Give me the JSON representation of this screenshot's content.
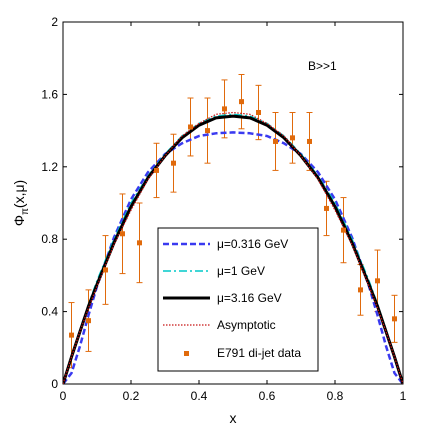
{
  "chart_data": {
    "type": "line",
    "xlabel": "x",
    "ylabel": "Φπ(x,μ)",
    "ylabel_parts": {
      "main": "Φ",
      "sub": "π",
      "args": "(x,μ)"
    },
    "annotation": "B>>1",
    "xlim": [
      0,
      1
    ],
    "ylim": [
      0,
      2
    ],
    "xticks": [
      "0",
      "0.2",
      "0.4",
      "0.6",
      "0.8",
      "1"
    ],
    "xtick_values": [
      0,
      0.2,
      0.4,
      0.6,
      0.8,
      1
    ],
    "yticks": [
      "0",
      "0.4",
      "0.8",
      "1.2",
      "1.6",
      "2"
    ],
    "ytick_values": [
      0,
      0.4,
      0.8,
      1.2,
      1.6,
      2
    ],
    "grid": false,
    "legend_position": "bottom-center",
    "series": [
      {
        "name": "μ=0.316 GeV",
        "style": "dashed",
        "color": "#3a3af0",
        "x": [
          0,
          0.025,
          0.05,
          0.075,
          0.1,
          0.15,
          0.2,
          0.25,
          0.3,
          0.35,
          0.4,
          0.45,
          0.5,
          0.55,
          0.6,
          0.65,
          0.7,
          0.75,
          0.8,
          0.85,
          0.9,
          0.925,
          0.95,
          0.975,
          1
        ],
        "y": [
          0,
          0.06,
          0.21,
          0.38,
          0.54,
          0.81,
          1.02,
          1.17,
          1.27,
          1.33,
          1.37,
          1.385,
          1.39,
          1.385,
          1.37,
          1.33,
          1.27,
          1.17,
          1.02,
          0.81,
          0.54,
          0.38,
          0.21,
          0.06,
          0
        ]
      },
      {
        "name": "μ=1 GeV",
        "style": "dash-dot",
        "color": "#00c8c8",
        "x": [
          0,
          0.025,
          0.05,
          0.075,
          0.1,
          0.15,
          0.2,
          0.25,
          0.3,
          0.35,
          0.4,
          0.45,
          0.5,
          0.55,
          0.6,
          0.65,
          0.7,
          0.75,
          0.8,
          0.85,
          0.9,
          0.925,
          0.95,
          0.975,
          1
        ],
        "y": [
          0,
          0.15,
          0.3,
          0.44,
          0.57,
          0.8,
          1.0,
          1.15,
          1.27,
          1.37,
          1.44,
          1.48,
          1.49,
          1.48,
          1.44,
          1.37,
          1.27,
          1.15,
          1.0,
          0.8,
          0.57,
          0.44,
          0.3,
          0.15,
          0
        ]
      },
      {
        "name": "μ=3.16 GeV",
        "style": "solid",
        "color": "#000000",
        "x": [
          0,
          0.025,
          0.05,
          0.075,
          0.1,
          0.15,
          0.2,
          0.25,
          0.3,
          0.35,
          0.4,
          0.45,
          0.5,
          0.55,
          0.6,
          0.65,
          0.7,
          0.75,
          0.8,
          0.85,
          0.9,
          0.925,
          0.95,
          0.975,
          1
        ],
        "y": [
          0,
          0.15,
          0.29,
          0.43,
          0.55,
          0.78,
          0.98,
          1.14,
          1.26,
          1.36,
          1.43,
          1.47,
          1.48,
          1.47,
          1.43,
          1.36,
          1.26,
          1.14,
          0.98,
          0.78,
          0.55,
          0.43,
          0.29,
          0.15,
          0
        ]
      },
      {
        "name": "Asymptotic",
        "style": "dotted",
        "color": "#c81414",
        "x": [
          0,
          0.025,
          0.05,
          0.075,
          0.1,
          0.15,
          0.2,
          0.25,
          0.3,
          0.35,
          0.4,
          0.45,
          0.5,
          0.55,
          0.6,
          0.65,
          0.7,
          0.75,
          0.8,
          0.85,
          0.9,
          0.925,
          0.95,
          0.975,
          1
        ],
        "y": [
          0,
          0.15,
          0.29,
          0.42,
          0.54,
          0.77,
          0.96,
          1.13,
          1.26,
          1.37,
          1.44,
          1.49,
          1.5,
          1.49,
          1.44,
          1.37,
          1.26,
          1.13,
          0.96,
          0.77,
          0.54,
          0.42,
          0.29,
          0.15,
          0
        ]
      }
    ],
    "points": {
      "name": "E791 di-jet data",
      "color": "#e06a0c",
      "x": [
        0.025,
        0.075,
        0.125,
        0.175,
        0.225,
        0.275,
        0.325,
        0.375,
        0.425,
        0.475,
        0.525,
        0.575,
        0.625,
        0.675,
        0.725,
        0.775,
        0.825,
        0.875,
        0.925,
        0.975
      ],
      "y": [
        0.27,
        0.35,
        0.63,
        0.83,
        0.78,
        1.18,
        1.22,
        1.42,
        1.4,
        1.52,
        1.56,
        1.5,
        1.34,
        1.36,
        1.34,
        0.97,
        0.85,
        0.52,
        0.57,
        0.36
      ],
      "err": [
        0.18,
        0.17,
        0.19,
        0.22,
        0.22,
        0.15,
        0.16,
        0.16,
        0.18,
        0.16,
        0.15,
        0.15,
        0.16,
        0.14,
        0.16,
        0.15,
        0.18,
        0.14,
        0.17,
        0.13
      ]
    }
  }
}
